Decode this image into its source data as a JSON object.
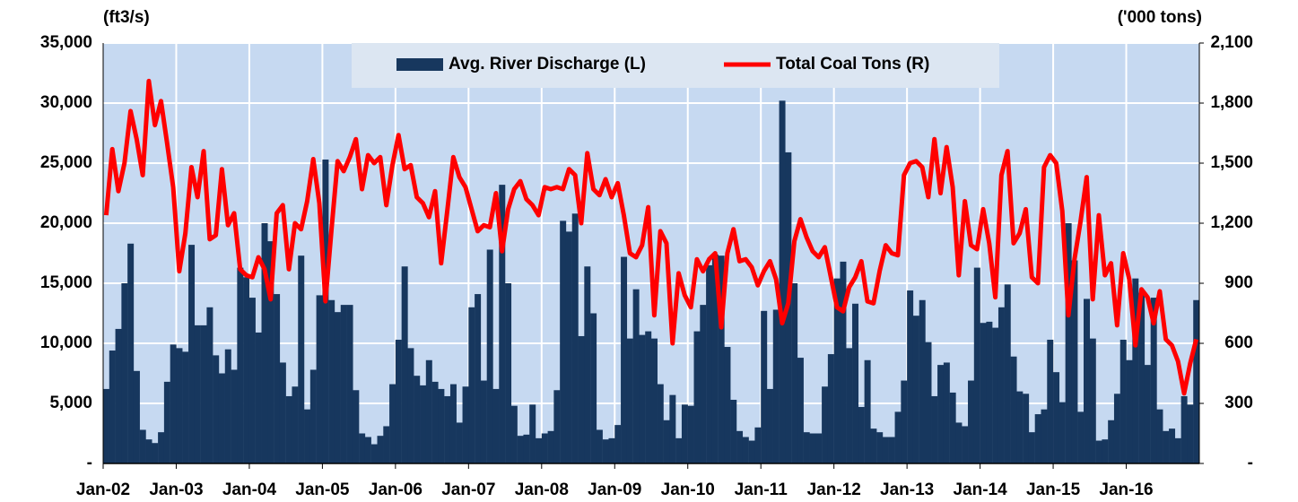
{
  "chart_data": {
    "type": "bar-line",
    "y_label": "(ft3/s)",
    "y2_label": "('000 tons)",
    "categories": [
      "Jan-02",
      null,
      null,
      null,
      null,
      null,
      null,
      null,
      null,
      null,
      null,
      null,
      "Jan-03",
      null,
      null,
      null,
      null,
      null,
      null,
      null,
      null,
      null,
      null,
      null,
      "Jan-04",
      null,
      null,
      null,
      null,
      null,
      null,
      null,
      null,
      null,
      null,
      null,
      "Jan-05",
      null,
      null,
      null,
      null,
      null,
      null,
      null,
      null,
      null,
      null,
      null,
      "Jan-06",
      null,
      null,
      null,
      null,
      null,
      null,
      null,
      null,
      null,
      null,
      null,
      "Jan-07",
      null,
      null,
      null,
      null,
      null,
      null,
      null,
      null,
      null,
      null,
      null,
      "Jan-08",
      null,
      null,
      null,
      null,
      null,
      null,
      null,
      null,
      null,
      null,
      null,
      "Jan-09",
      null,
      null,
      null,
      null,
      null,
      null,
      null,
      null,
      null,
      null,
      null,
      "Jan-10",
      null,
      null,
      null,
      null,
      null,
      null,
      null,
      null,
      null,
      null,
      null,
      "Jan-11",
      null,
      null,
      null,
      null,
      null,
      null,
      null,
      null,
      null,
      null,
      null,
      "Jan-12",
      null,
      null,
      null,
      null,
      null,
      null,
      null,
      null,
      null,
      null,
      null,
      "Jan-13",
      null,
      null,
      null,
      null,
      null,
      null,
      null,
      null,
      null,
      null,
      null,
      "Jan-14",
      null,
      null,
      null,
      null,
      null,
      null,
      null,
      null,
      null,
      null,
      null,
      "Jan-15",
      null,
      null,
      null,
      null,
      null,
      null,
      null,
      null,
      null,
      null,
      null,
      "Jan-16",
      null,
      null,
      null,
      null,
      null,
      null,
      null,
      null,
      null,
      null,
      null
    ],
    "series": [
      {
        "name": "Avg. River Discharge (L)",
        "type": "bar",
        "axis": "y",
        "color": "#17375e",
        "values": [
          6200,
          9400,
          11200,
          15000,
          18300,
          7700,
          2800,
          2000,
          1700,
          2600,
          6800,
          9900,
          9600,
          9300,
          18200,
          11500,
          11500,
          13000,
          9000,
          7500,
          9500,
          7800,
          16300,
          15500,
          13800,
          10900,
          20000,
          18500,
          14100,
          8400,
          5600,
          6400,
          17300,
          4500,
          7800,
          14000,
          25300,
          13600,
          12600,
          13200,
          13200,
          6100,
          2500,
          2200,
          1600,
          2300,
          3100,
          6600,
          10300,
          16400,
          9600,
          7300,
          6500,
          8600,
          6800,
          6200,
          5600,
          6600,
          3400,
          6400,
          13000,
          14100,
          6900,
          17800,
          6200,
          23200,
          15000,
          4800,
          2300,
          2400,
          4900,
          2100,
          2500,
          2700,
          6100,
          20200,
          19300,
          20800,
          10600,
          16400,
          12500,
          2800,
          2000,
          2100,
          3200,
          17200,
          10400,
          14500,
          10700,
          11000,
          10400,
          6600,
          3600,
          5700,
          2100,
          4900,
          4800,
          11000,
          13200,
          16500,
          17400,
          17300,
          9700,
          5300,
          2700,
          2200,
          1900,
          3000,
          12700,
          6200,
          12800,
          30200,
          25900,
          15000,
          8800,
          2600,
          2500,
          2500,
          6400,
          9100,
          15400,
          16800,
          9600,
          13300,
          4700,
          8600,
          2900,
          2600,
          2200,
          2200,
          4300,
          6900,
          14400,
          12300,
          13600,
          10100,
          5600,
          8200,
          8400,
          5900,
          3400,
          3100,
          6900,
          16300,
          11700,
          11800,
          11300,
          13000,
          14900,
          8900,
          6000,
          5800,
          2600,
          4100,
          4500,
          10300,
          7600,
          5100,
          20000,
          16900,
          4300,
          13700,
          10400,
          1900,
          2000,
          3600,
          5800,
          10300,
          8600,
          15400,
          14200,
          8200,
          13800,
          4500,
          2700,
          2900,
          2100,
          5600,
          4900,
          13600
        ]
      },
      {
        "name": "Total Coal Tons (R)",
        "type": "line",
        "axis": "y2",
        "color": "#ff0000",
        "values": [
          1240,
          1570,
          1360,
          1500,
          1760,
          1620,
          1440,
          1910,
          1690,
          1810,
          1600,
          1380,
          960,
          1150,
          1480,
          1330,
          1560,
          1120,
          1140,
          1470,
          1190,
          1250,
          970,
          940,
          930,
          1030,
          970,
          820,
          1250,
          1290,
          970,
          1200,
          1170,
          1310,
          1520,
          1300,
          810,
          1170,
          1510,
          1460,
          1530,
          1620,
          1370,
          1540,
          1500,
          1530,
          1290,
          1490,
          1640,
          1470,
          1490,
          1330,
          1300,
          1230,
          1360,
          1000,
          1260,
          1530,
          1430,
          1380,
          1270,
          1160,
          1190,
          1180,
          1350,
          1060,
          1270,
          1370,
          1410,
          1320,
          1290,
          1240,
          1380,
          1370,
          1380,
          1370,
          1470,
          1440,
          1200,
          1550,
          1370,
          1340,
          1420,
          1330,
          1400,
          1240,
          1050,
          1030,
          1090,
          1280,
          740,
          1160,
          1100,
          600,
          950,
          840,
          780,
          1020,
          960,
          1020,
          1050,
          680,
          1050,
          1170,
          1010,
          1020,
          980,
          890,
          960,
          1010,
          920,
          700,
          800,
          1110,
          1220,
          1130,
          1060,
          1030,
          1080,
          930,
          780,
          760,
          880,
          930,
          1010,
          810,
          800,
          960,
          1090,
          1050,
          1040,
          1440,
          1500,
          1510,
          1480,
          1330,
          1620,
          1350,
          1580,
          1380,
          940,
          1310,
          1090,
          1070,
          1270,
          1100,
          830,
          1440,
          1560,
          1100,
          1150,
          1270,
          930,
          900,
          1480,
          1540,
          1500,
          1260,
          740,
          1020,
          1210,
          1430,
          820,
          1240,
          940,
          1000,
          690,
          1050,
          920,
          590,
          870,
          830,
          700,
          860,
          620,
          590,
          510,
          350,
          500,
          620
        ]
      }
    ],
    "ylim": [
      0,
      35000
    ],
    "yticks": [
      {
        "value": 0,
        "label": "-"
      },
      {
        "value": 5000,
        "label": "5,000"
      },
      {
        "value": 10000,
        "label": "10,000"
      },
      {
        "value": 15000,
        "label": "15,000"
      },
      {
        "value": 20000,
        "label": "20,000"
      },
      {
        "value": 25000,
        "label": "25,000"
      },
      {
        "value": 30000,
        "label": "30,000"
      },
      {
        "value": 35000,
        "label": "35,000"
      }
    ],
    "y2lim": [
      0,
      2100
    ],
    "y2ticks": [
      {
        "value": 0,
        "label": "-"
      },
      300,
      600,
      900,
      {
        "value": 1200,
        "label": "1,200"
      },
      {
        "value": 1500,
        "label": "1,500"
      },
      {
        "value": 1800,
        "label": "1,800"
      },
      {
        "value": 2100,
        "label": "2,100"
      }
    ],
    "grid": true,
    "legend": "top"
  }
}
